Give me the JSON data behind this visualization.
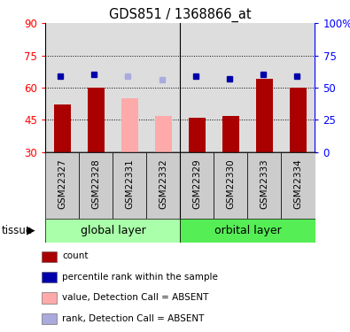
{
  "title": "GDS851 / 1368866_at",
  "samples": [
    "GSM22327",
    "GSM22328",
    "GSM22331",
    "GSM22332",
    "GSM22329",
    "GSM22330",
    "GSM22333",
    "GSM22334"
  ],
  "bar_values": [
    52,
    60,
    null,
    null,
    46,
    47,
    64,
    60
  ],
  "bar_absent_values": [
    null,
    null,
    55,
    47,
    null,
    null,
    null,
    null
  ],
  "rank_values": [
    59,
    60,
    null,
    null,
    59,
    57,
    60,
    59
  ],
  "rank_absent_values": [
    null,
    null,
    59,
    56,
    null,
    null,
    null,
    null
  ],
  "bar_color": "#aa0000",
  "bar_absent_color": "#ffaaaa",
  "rank_color": "#0000aa",
  "rank_absent_color": "#aaaadd",
  "ylim_left": [
    30,
    90
  ],
  "ylim_right": [
    0,
    100
  ],
  "yticks_left": [
    30,
    45,
    60,
    75,
    90
  ],
  "ytick_labels_left": [
    "30",
    "45",
    "60",
    "75",
    "90"
  ],
  "yticks_right": [
    0,
    25,
    50,
    75,
    100
  ],
  "ytick_labels_right": [
    "0",
    "25",
    "50",
    "75",
    "100%"
  ],
  "gridlines": [
    45,
    60,
    75
  ],
  "group_labels": [
    "global layer",
    "orbital layer"
  ],
  "group_sizes": [
    4,
    4
  ],
  "group_colors": [
    "#aaffaa",
    "#55ee55"
  ],
  "tissue_label": "tissue",
  "legend_items": [
    {
      "label": "count",
      "color": "#aa0000"
    },
    {
      "label": "percentile rank within the sample",
      "color": "#0000aa"
    },
    {
      "label": "value, Detection Call = ABSENT",
      "color": "#ffaaaa"
    },
    {
      "label": "rank, Detection Call = ABSENT",
      "color": "#aaaadd"
    }
  ]
}
